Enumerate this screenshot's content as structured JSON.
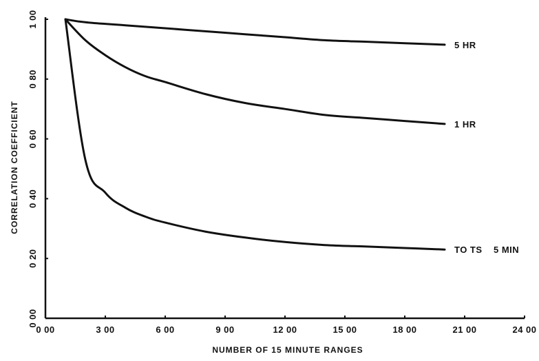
{
  "chart_data": {
    "type": "line",
    "xlabel": "NUMBER OF 15 MINUTE RANGES",
    "ylabel": "CORRELATION COEFFICIENT",
    "xlim": [
      0,
      24
    ],
    "ylim": [
      0,
      1
    ],
    "x_ticks": [
      {
        "value": 0,
        "label": "0 00"
      },
      {
        "value": 3,
        "label": "3 00"
      },
      {
        "value": 6,
        "label": "6 00"
      },
      {
        "value": 9,
        "label": "9 00"
      },
      {
        "value": 12,
        "label": "12 00"
      },
      {
        "value": 15,
        "label": "15 00"
      },
      {
        "value": 18,
        "label": "18 00"
      },
      {
        "value": 21,
        "label": "21 00"
      },
      {
        "value": 24,
        "label": "24 00"
      }
    ],
    "y_ticks": [
      {
        "value": 0,
        "label": "0 00"
      },
      {
        "value": 0.2,
        "label": "0 20"
      },
      {
        "value": 0.4,
        "label": "0 40"
      },
      {
        "value": 0.6,
        "label": "0 60"
      },
      {
        "value": 0.8,
        "label": "0 80"
      },
      {
        "value": 1.0,
        "label": "1 00"
      }
    ],
    "grid": false,
    "series": [
      {
        "name": "5 HR",
        "x": [
          1,
          2,
          4,
          6,
          8,
          10,
          12,
          14,
          16,
          18,
          20
        ],
        "y": [
          1.0,
          0.99,
          0.98,
          0.97,
          0.96,
          0.95,
          0.94,
          0.93,
          0.925,
          0.92,
          0.915
        ]
      },
      {
        "name": "1 HR",
        "x": [
          1,
          2,
          3,
          4,
          5,
          6,
          8,
          10,
          12,
          14,
          16,
          18,
          20
        ],
        "y": [
          1.0,
          0.93,
          0.88,
          0.84,
          0.81,
          0.79,
          0.75,
          0.72,
          0.7,
          0.68,
          0.67,
          0.66,
          0.65
        ]
      },
      {
        "name": "TO TS    5 MIN",
        "x": [
          1,
          2,
          3,
          4,
          5,
          6,
          8,
          10,
          12,
          14,
          16,
          18,
          20
        ],
        "y": [
          1.0,
          0.53,
          0.42,
          0.37,
          0.34,
          0.32,
          0.29,
          0.27,
          0.255,
          0.245,
          0.24,
          0.235,
          0.23
        ]
      }
    ]
  }
}
